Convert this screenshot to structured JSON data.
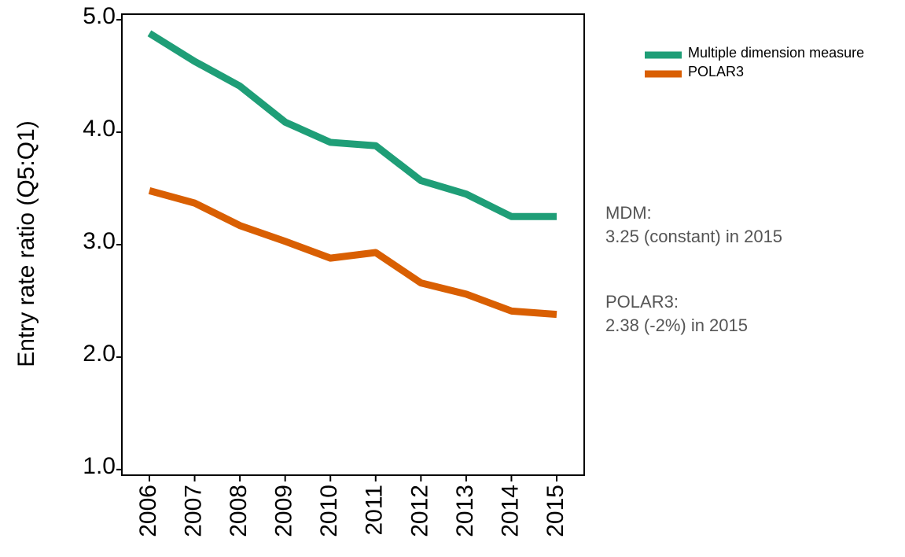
{
  "chart_data": {
    "type": "line",
    "y_label": "Entry rate ratio (Q5:Q1)",
    "categories": [
      "2006",
      "2007",
      "2008",
      "2009",
      "2010",
      "2011",
      "2012",
      "2013",
      "2014",
      "2015"
    ],
    "series": [
      {
        "name": "Multiple dimension measure",
        "color": "#1f9e77",
        "values": [
          4.88,
          4.63,
          4.41,
          4.09,
          3.91,
          3.88,
          3.57,
          3.45,
          3.25,
          3.25
        ]
      },
      {
        "name": "POLAR3",
        "color": "#d95f02",
        "values": [
          3.48,
          3.37,
          3.17,
          3.03,
          2.88,
          2.93,
          2.66,
          2.56,
          2.41,
          2.38
        ]
      }
    ],
    "ylim": [
      0.95,
      5.05
    ],
    "yticks": [
      {
        "value": 1,
        "label": "1.0"
      },
      {
        "value": 2,
        "label": "2.0"
      },
      {
        "value": 3,
        "label": "3.0"
      },
      {
        "value": 4,
        "label": "4.0"
      },
      {
        "value": 5,
        "label": "5.0"
      }
    ],
    "legend": "top-right",
    "annotations": [
      [
        "MDM:",
        "3.25 (constant) in 2015"
      ],
      [
        "POLAR3:",
        "2.38 (-2%) in 2015"
      ]
    ]
  }
}
